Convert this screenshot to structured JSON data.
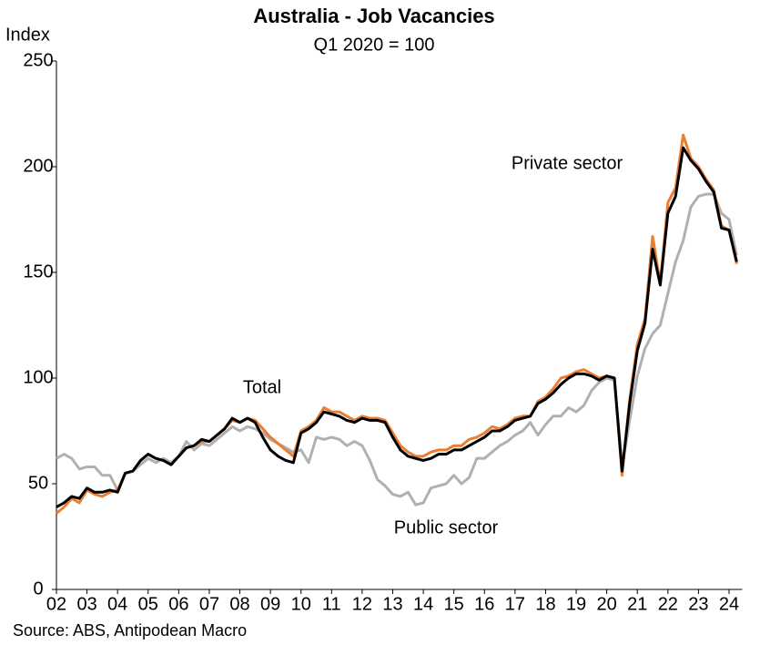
{
  "chart_data": {
    "type": "line",
    "title": "Australia - Job Vacancies",
    "subtitle": "Q1 2020 = 100",
    "y_label": "Index",
    "source": "Source: ABS, Antipodean Macro",
    "categories": [
      "02",
      null,
      null,
      null,
      "03",
      null,
      null,
      null,
      "04",
      null,
      null,
      null,
      "05",
      null,
      null,
      null,
      "06",
      null,
      null,
      null,
      "07",
      null,
      null,
      null,
      "08",
      null,
      null,
      null,
      "09",
      null,
      null,
      null,
      "10",
      null,
      null,
      null,
      "11",
      null,
      null,
      null,
      "12",
      null,
      null,
      null,
      "13",
      null,
      null,
      null,
      "14",
      null,
      null,
      null,
      "15",
      null,
      null,
      null,
      "16",
      null,
      null,
      null,
      "17",
      null,
      null,
      null,
      "18",
      null,
      null,
      null,
      "19",
      null,
      null,
      null,
      "20",
      null,
      null,
      null,
      "21",
      null,
      null,
      null,
      "22",
      null,
      null,
      null,
      "23",
      null,
      null,
      null,
      "24",
      null
    ],
    "series": [
      {
        "name": "Public sector",
        "color": "#b0b0b0",
        "values": [
          62,
          64,
          62,
          57,
          58,
          58,
          54,
          54,
          47,
          55,
          56,
          59,
          62,
          60,
          62,
          60,
          63,
          70,
          66,
          69,
          68,
          71,
          74,
          77,
          75,
          77,
          76,
          74,
          71,
          69,
          67,
          65,
          66,
          60,
          72,
          71,
          72,
          71,
          68,
          70,
          68,
          61,
          52,
          49,
          45,
          44,
          46,
          40,
          41,
          48,
          49,
          50,
          54,
          50,
          53,
          62,
          62,
          65,
          68,
          70,
          73,
          75,
          79,
          73,
          78,
          82,
          82,
          86,
          84,
          87,
          94,
          98,
          100,
          99,
          58,
          80,
          101,
          114,
          121,
          125,
          140,
          155,
          165,
          181,
          186,
          187,
          187,
          178,
          175,
          158
        ]
      },
      {
        "name": "Private sector",
        "color": "#ed7d31",
        "values": [
          36,
          39,
          43,
          41,
          47,
          45,
          44,
          46,
          47,
          55,
          56,
          61,
          64,
          62,
          61,
          59,
          63,
          67,
          68,
          70,
          70,
          73,
          76,
          80,
          79,
          81,
          80,
          76,
          72,
          69,
          66,
          63,
          75,
          77,
          80,
          86,
          84,
          84,
          82,
          80,
          82,
          81,
          81,
          80,
          74,
          68,
          65,
          63,
          63,
          65,
          66,
          66,
          68,
          68,
          71,
          72,
          74,
          77,
          76,
          78,
          81,
          82,
          82,
          89,
          91,
          95,
          100,
          101,
          103,
          104,
          102,
          100,
          101,
          100,
          54,
          90,
          116,
          128,
          167,
          145,
          183,
          190,
          215,
          204,
          200,
          194,
          189,
          172,
          170,
          154
        ]
      },
      {
        "name": "Total",
        "color": "#000000",
        "values": [
          39,
          41,
          44,
          43,
          48,
          46,
          46,
          47,
          46,
          55,
          56,
          61,
          64,
          62,
          61,
          59,
          63,
          67,
          68,
          71,
          70,
          73,
          76,
          81,
          79,
          81,
          79,
          72,
          66,
          63,
          61,
          60,
          74,
          76,
          79,
          84,
          83,
          82,
          80,
          79,
          81,
          80,
          80,
          79,
          72,
          66,
          63,
          62,
          61,
          62,
          64,
          64,
          66,
          66,
          68,
          70,
          72,
          75,
          75,
          77,
          80,
          81,
          82,
          88,
          90,
          93,
          97,
          100,
          102,
          102,
          101,
          99,
          101,
          100,
          56,
          88,
          113,
          126,
          161,
          144,
          178,
          186,
          209,
          203,
          199,
          193,
          188,
          171,
          170,
          155
        ]
      }
    ],
    "ylim": [
      0,
      250
    ],
    "yticks": [
      0,
      50,
      100,
      150,
      200,
      250
    ],
    "grid": false
  }
}
